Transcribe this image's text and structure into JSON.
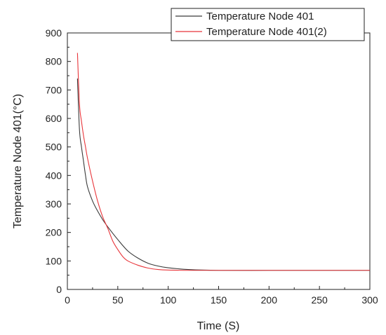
{
  "chart_data": {
    "type": "line",
    "title": "",
    "xlabel": "Time (S)",
    "ylabel": "Temperature   Node 401(°C)",
    "xlim": [
      0,
      300
    ],
    "ylim": [
      0,
      900
    ],
    "xticks": [
      "0",
      "50",
      "100",
      "150",
      "200",
      "250",
      "300"
    ],
    "yticks": [
      "0",
      "100",
      "200",
      "300",
      "400",
      "500",
      "600",
      "700",
      "800",
      "900"
    ],
    "grid": false,
    "legend_position": "top-right",
    "series": [
      {
        "name": "Temperature   Node 401",
        "color": "#3a3a3a",
        "x": [
          10,
          12,
          14,
          16,
          18,
          20,
          25,
          30,
          35,
          40,
          50,
          60,
          70,
          80,
          90,
          100,
          120,
          150,
          200,
          250,
          300
        ],
        "y": [
          740,
          560,
          500,
          450,
          400,
          360,
          310,
          275,
          245,
          220,
          175,
          135,
          110,
          92,
          82,
          76,
          70,
          67,
          67,
          67,
          67
        ]
      },
      {
        "name": "Temperature   Node 401(2)",
        "color": "#e8353a",
        "x": [
          10,
          12,
          14,
          16,
          18,
          20,
          25,
          30,
          35,
          40,
          45,
          50,
          55,
          60,
          70,
          80,
          90,
          100,
          120,
          150,
          200,
          250,
          300
        ],
        "y": [
          830,
          650,
          590,
          540,
          500,
          460,
          380,
          310,
          255,
          215,
          170,
          140,
          115,
          100,
          85,
          75,
          70,
          68,
          67,
          67,
          67,
          67,
          67
        ]
      }
    ]
  }
}
